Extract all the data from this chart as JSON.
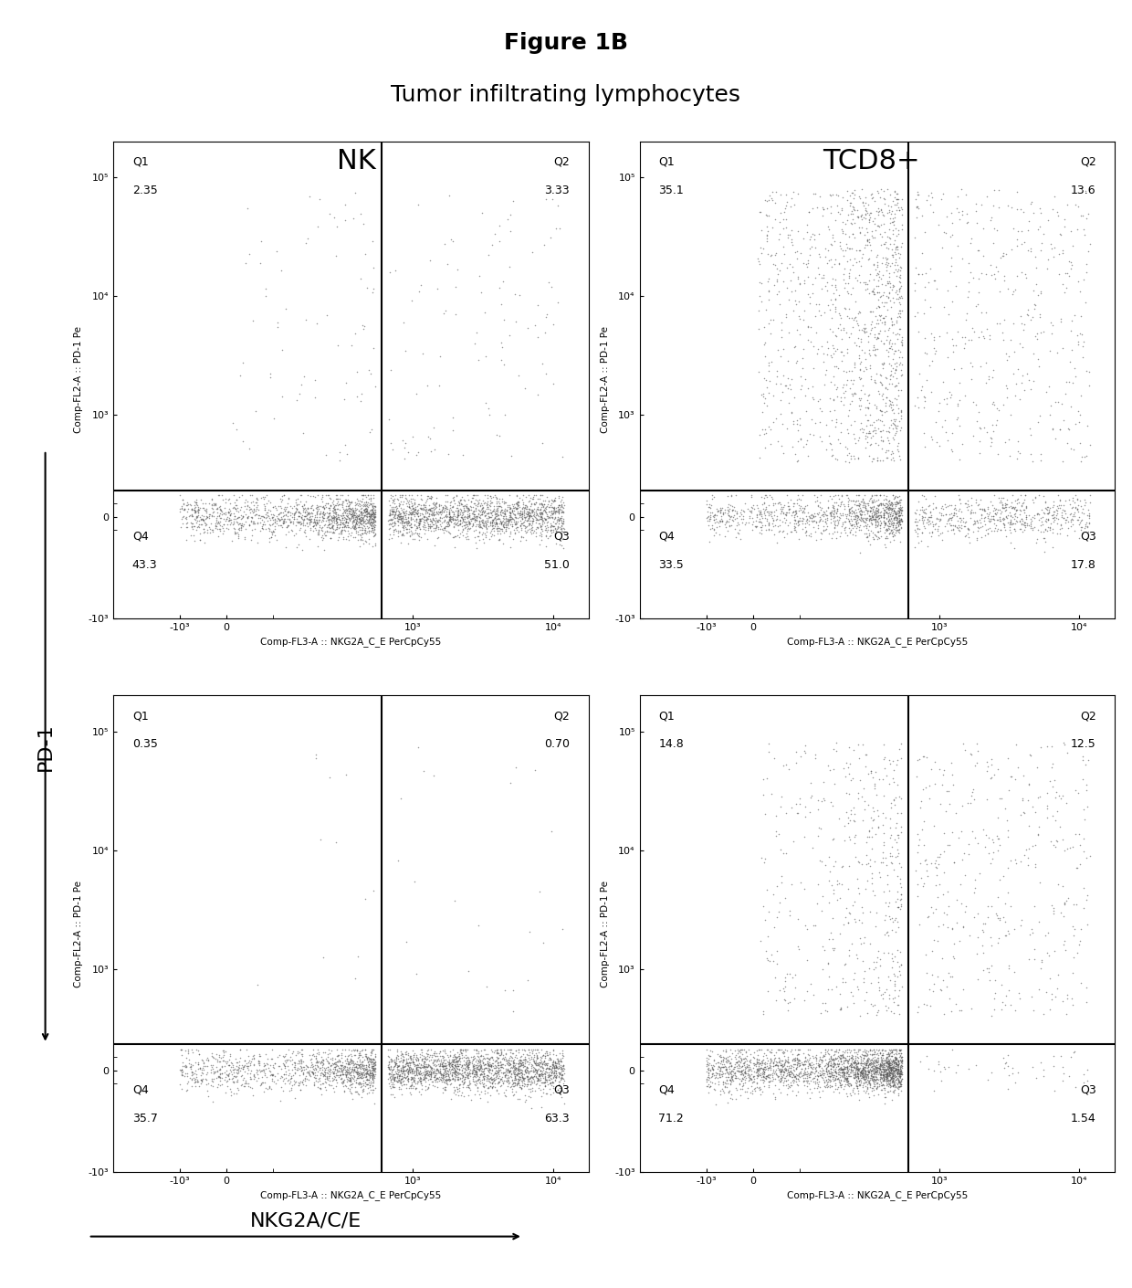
{
  "figure_title": "Figure 1B",
  "subtitle": "Tumor infiltrating lymphocytes",
  "col_labels": [
    "NK",
    "TCD8+"
  ],
  "ylabel_shared": "PD-1",
  "xlabel_shared": "NKG2A/C/E",
  "xlabel_axis": "Comp-FL3-A :: NKG2A_C_E PerCpCy55",
  "ylabel_axis": "Comp-FL2-A :: PD-1 Pe",
  "plots": [
    {
      "row": 0,
      "col": 0,
      "Q1": "2.35",
      "Q2": "3.33",
      "Q3": "51.0",
      "Q4": "43.3",
      "scatter_params": {
        "n_Q1": 80,
        "n_Q2": 110,
        "n_Q3": 1700,
        "n_Q4": 1450,
        "seed": 42
      }
    },
    {
      "row": 0,
      "col": 1,
      "Q1": "35.1",
      "Q2": "13.6",
      "Q3": "17.8",
      "Q4": "33.5",
      "scatter_params": {
        "n_Q1": 1200,
        "n_Q2": 460,
        "n_Q3": 600,
        "n_Q4": 1130,
        "seed": 43
      }
    },
    {
      "row": 1,
      "col": 0,
      "Q1": "0.35",
      "Q2": "0.70",
      "Q3": "63.3",
      "Q4": "35.7",
      "scatter_params": {
        "n_Q1": 12,
        "n_Q2": 24,
        "n_Q3": 2100,
        "n_Q4": 1200,
        "seed": 44
      }
    },
    {
      "row": 1,
      "col": 1,
      "Q1": "14.8",
      "Q2": "12.5",
      "Q3": "1.54",
      "Q4": "71.2",
      "scatter_params": {
        "n_Q1": 500,
        "n_Q2": 420,
        "n_Q3": 52,
        "n_Q4": 2400,
        "seed": 45
      }
    }
  ],
  "xline": 600,
  "yline": 200,
  "xlim": [
    -200,
    15000
  ],
  "ylim": [
    -800,
    120000
  ],
  "bg_color": "#ffffff",
  "dot_color": "#555555",
  "dot_size": 1.2,
  "dot_alpha": 0.6
}
